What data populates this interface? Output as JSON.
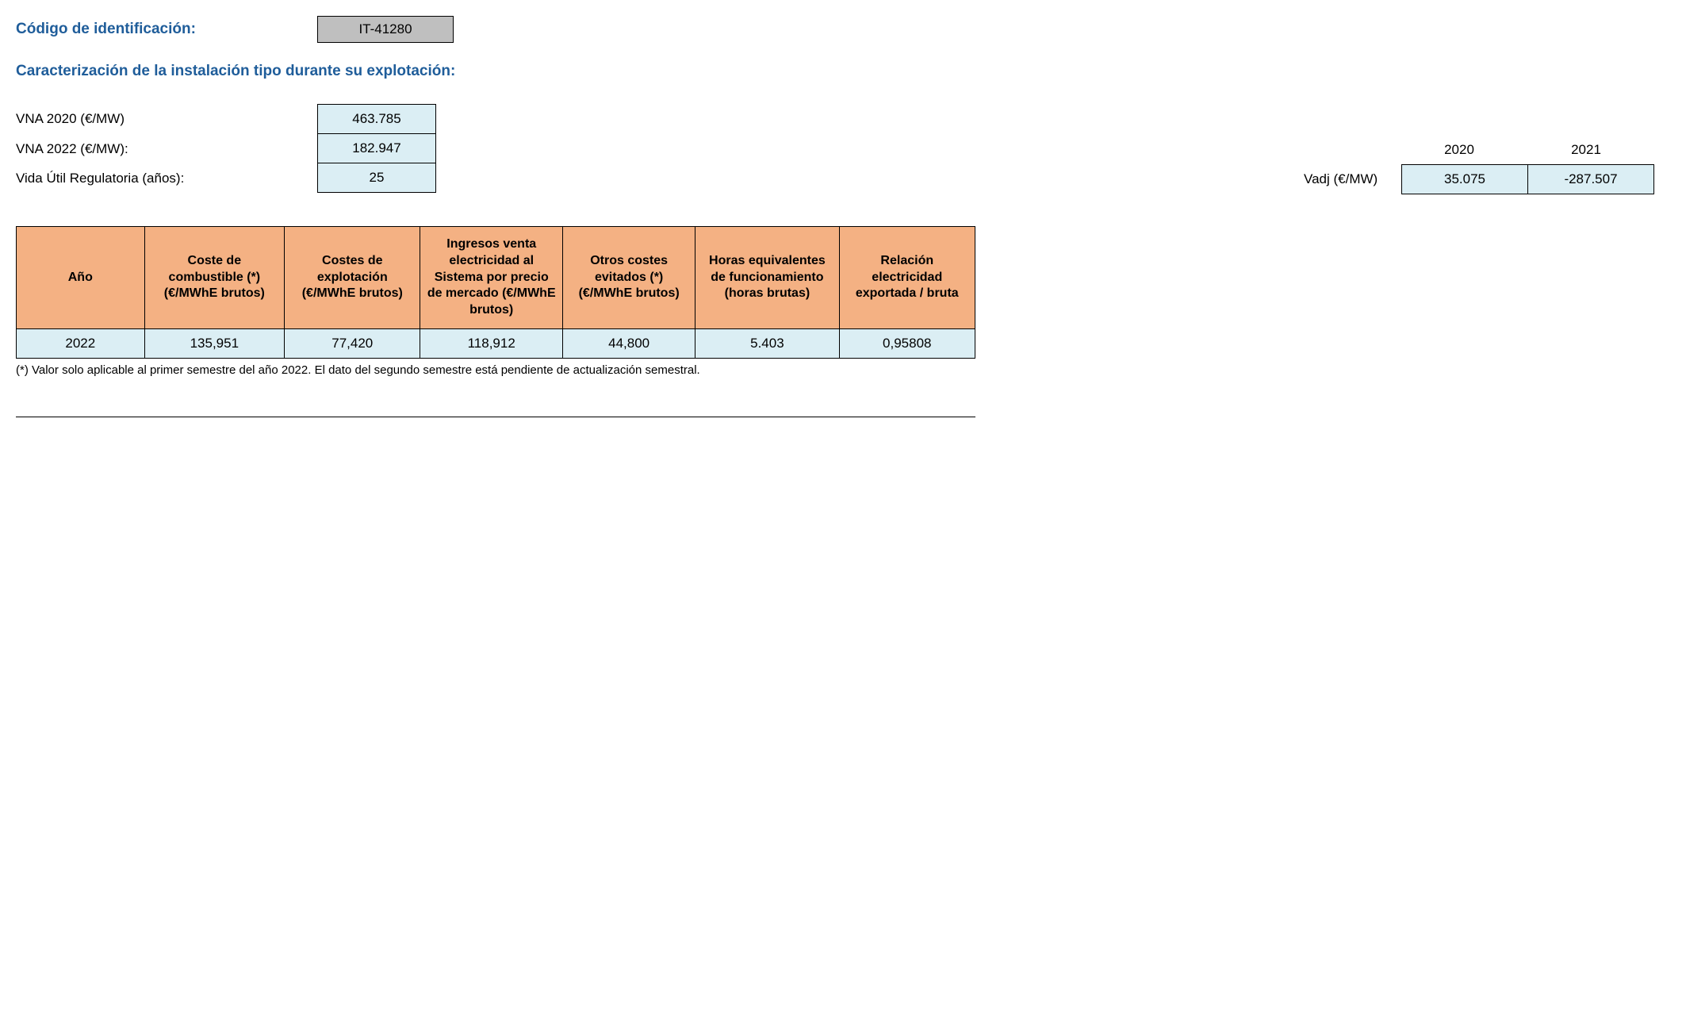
{
  "header": {
    "id_label": "Código de identificación:",
    "id_value": "IT-41280"
  },
  "section_title": "Caracterización de la instalación tipo durante su explotación:",
  "params": {
    "vna2020_label": "VNA 2020 (€/MW)",
    "vna2020_value": "463.785",
    "vna2022_label": "VNA 2022 (€/MW):",
    "vna2022_value": "182.947",
    "vida_label": "Vida Útil Regulatoria (años):",
    "vida_value": "25"
  },
  "vadj": {
    "label": "Vadj (€/MW)",
    "year1_header": "2020",
    "year2_header": "2021",
    "year1_value": "35.075",
    "year2_value": "-287.507"
  },
  "table": {
    "headers": {
      "col1": "Año",
      "col2": "Coste de combustible (*) (€/MWhE brutos)",
      "col3": "Costes de explotación (€/MWhE brutos)",
      "col4": "Ingresos venta electricidad al Sistema por precio de mercado (€/MWhE brutos)",
      "col5": "Otros costes evitados (*) (€/MWhE brutos)",
      "col6": "Horas equivalentes de funcionamiento (horas brutas)",
      "col7": "Relación electricidad exportada / bruta"
    },
    "row1": {
      "c1": "2022",
      "c2": "135,951",
      "c3": "77,420",
      "c4": "118,912",
      "c5": "44,800",
      "c6": "5.403",
      "c7": "0,95808"
    }
  },
  "footnote": "(*) Valor solo aplicable al primer semestre del año 2022. El dato del segundo semestre está pendiente de actualización semestral.",
  "styling": {
    "heading_color": "#1F5D9A",
    "id_box_bg": "#BFBFBF",
    "value_cell_bg": "#DBEEF4",
    "table_header_bg": "#F4B183",
    "border_color": "#000000",
    "body_bg": "#ffffff",
    "text_color": "#000000",
    "heading_fontsize": 19,
    "body_fontsize": 17,
    "table_header_fontsize": 16,
    "footnote_fontsize": 15
  }
}
